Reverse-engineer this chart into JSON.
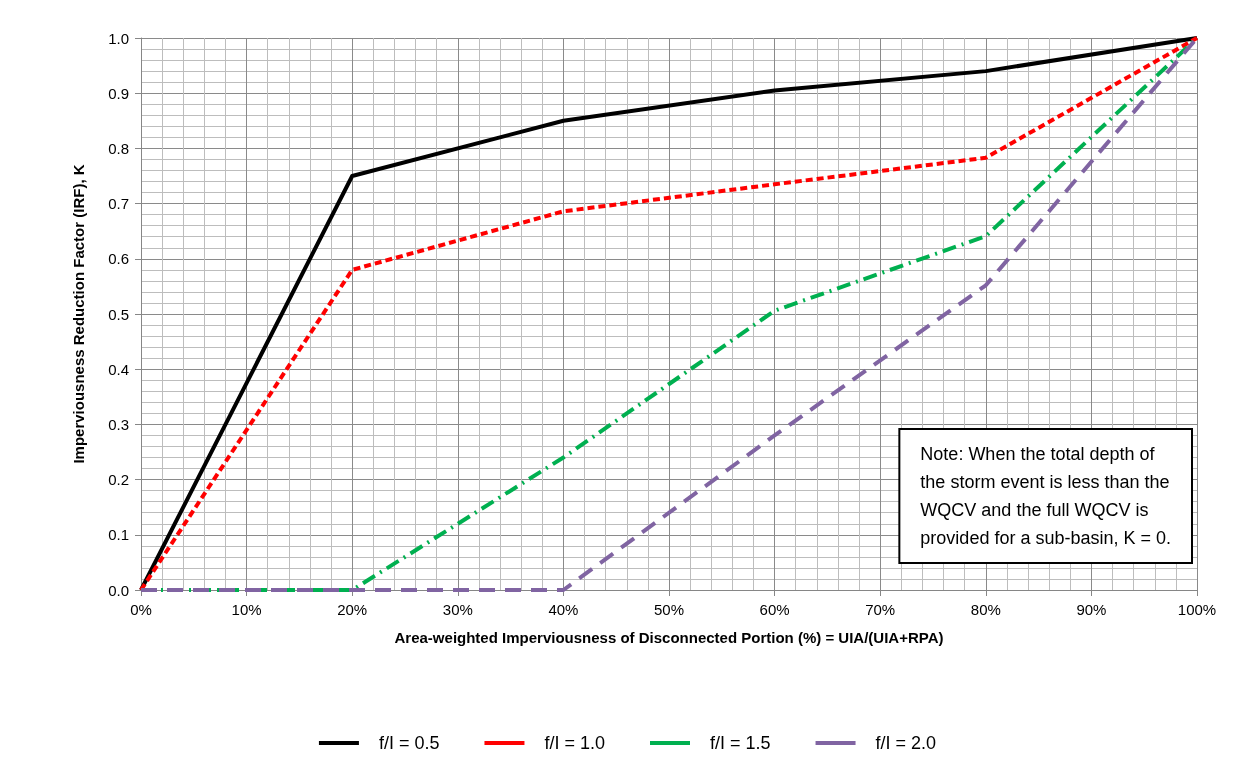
{
  "chart_data": {
    "type": "line",
    "xlabel": "Area-weighted Imperviousness of Disconnected Portion (%) = UIA/(UIA+RPA)",
    "ylabel": "Imperviousness Reduction Factor (IRF), K",
    "x": [
      0,
      20,
      40,
      60,
      80,
      100
    ],
    "series": [
      {
        "name": "f/I = 0.5",
        "color": "#000000",
        "line_style": "solid",
        "values": [
          0,
          0.75,
          0.85,
          0.905,
          0.94,
          1.0
        ]
      },
      {
        "name": "f/I = 1.0",
        "color": "#ff0000",
        "line_style": "dashed",
        "values": [
          0,
          0.58,
          0.686,
          0.735,
          0.783,
          1.0
        ]
      },
      {
        "name": "f/I = 1.5",
        "color": "#00b050",
        "line_style": "dashdot",
        "values": [
          0,
          0,
          0.24,
          0.506,
          0.641,
          1.0
        ]
      },
      {
        "name": "f/I = 2.0",
        "color": "#8064a2",
        "line_style": "longdash",
        "values": [
          0,
          0,
          0,
          0.28,
          0.552,
          1.0
        ]
      }
    ],
    "xlim": [
      0,
      100
    ],
    "xticks": [
      {
        "value": 0,
        "label": "0%"
      },
      {
        "value": 10,
        "label": "10%"
      },
      {
        "value": 20,
        "label": "20%"
      },
      {
        "value": 30,
        "label": "30%"
      },
      {
        "value": 40,
        "label": "40%"
      },
      {
        "value": 50,
        "label": "50%"
      },
      {
        "value": 60,
        "label": "60%"
      },
      {
        "value": 70,
        "label": "70%"
      },
      {
        "value": 80,
        "label": "80%"
      },
      {
        "value": 90,
        "label": "90%"
      },
      {
        "value": 100,
        "label": "100%"
      }
    ],
    "ylim": [
      0,
      1
    ],
    "yticks": [
      {
        "value": 0,
        "label": "0.0"
      },
      {
        "value": 0.1,
        "label": "0.1"
      },
      {
        "value": 0.2,
        "label": "0.2"
      },
      {
        "value": 0.3,
        "label": "0.3"
      },
      {
        "value": 0.4,
        "label": "0.4"
      },
      {
        "value": 0.5,
        "label": "0.5"
      },
      {
        "value": 0.6,
        "label": "0.6"
      },
      {
        "value": 0.7,
        "label": "0.7"
      },
      {
        "value": 0.8,
        "label": "0.8"
      },
      {
        "value": 0.9,
        "label": "0.9"
      },
      {
        "value": 1.0,
        "label": "1.0"
      }
    ],
    "grid": true,
    "legend": "bottom",
    "marker": "none",
    "annotations": [
      "Note: When the total depth of\nthe storm event is less than the\nWQCV and the full WQCV is\nprovided for a sub-basin, K = 0."
    ]
  }
}
